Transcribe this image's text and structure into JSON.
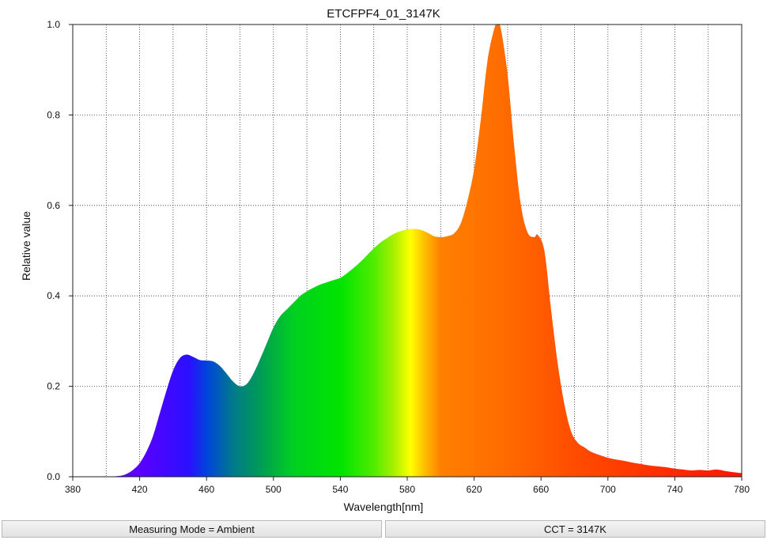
{
  "chart_data": {
    "type": "area",
    "title": "ETCFPF4_01_3147K",
    "xlabel": "Wavelength[nm]",
    "ylabel": "Relative value",
    "xlim": [
      380,
      780
    ],
    "ylim": [
      0,
      1.0
    ],
    "xticks": [
      "380",
      "420",
      "460",
      "500",
      "540",
      "580",
      "620",
      "660",
      "700",
      "740",
      "780"
    ],
    "yticks": [
      "0.0",
      "0.2",
      "0.4",
      "0.6",
      "0.8",
      "1.0"
    ],
    "grid": true,
    "x": [
      400,
      408,
      412,
      416,
      420,
      424,
      428,
      432,
      436,
      440,
      444,
      448,
      452,
      456,
      460,
      464,
      468,
      472,
      476,
      480,
      484,
      488,
      492,
      496,
      500,
      504,
      508,
      512,
      516,
      520,
      524,
      528,
      532,
      536,
      540,
      544,
      548,
      552,
      556,
      560,
      564,
      568,
      572,
      576,
      580,
      584,
      588,
      592,
      596,
      600,
      604,
      608,
      612,
      616,
      620,
      624,
      628,
      632,
      634,
      636,
      640,
      644,
      648,
      652,
      656,
      658,
      662,
      666,
      670,
      674,
      678,
      682,
      686,
      690,
      695,
      700,
      705,
      710,
      715,
      720,
      725,
      730,
      735,
      740,
      745,
      750,
      755,
      760,
      765,
      770,
      775,
      780
    ],
    "y": [
      0.0,
      0.002,
      0.006,
      0.015,
      0.03,
      0.055,
      0.09,
      0.14,
      0.19,
      0.235,
      0.262,
      0.27,
      0.265,
      0.258,
      0.257,
      0.255,
      0.245,
      0.228,
      0.21,
      0.2,
      0.205,
      0.228,
      0.26,
      0.295,
      0.33,
      0.355,
      0.37,
      0.385,
      0.4,
      0.41,
      0.418,
      0.425,
      0.43,
      0.435,
      0.44,
      0.45,
      0.462,
      0.475,
      0.49,
      0.505,
      0.518,
      0.528,
      0.537,
      0.543,
      0.547,
      0.548,
      0.546,
      0.54,
      0.532,
      0.53,
      0.532,
      0.538,
      0.56,
      0.61,
      0.68,
      0.79,
      0.92,
      0.99,
      1.0,
      0.99,
      0.89,
      0.73,
      0.6,
      0.54,
      0.53,
      0.535,
      0.5,
      0.37,
      0.25,
      0.16,
      0.1,
      0.075,
      0.065,
      0.055,
      0.048,
      0.042,
      0.038,
      0.035,
      0.031,
      0.028,
      0.025,
      0.023,
      0.021,
      0.018,
      0.016,
      0.014,
      0.015,
      0.014,
      0.016,
      0.013,
      0.01,
      0.008
    ],
    "fill": "spectral-gradient"
  },
  "status": {
    "measuring_mode": "Measuring Mode = Ambient",
    "cct": "CCT = 3147K"
  }
}
